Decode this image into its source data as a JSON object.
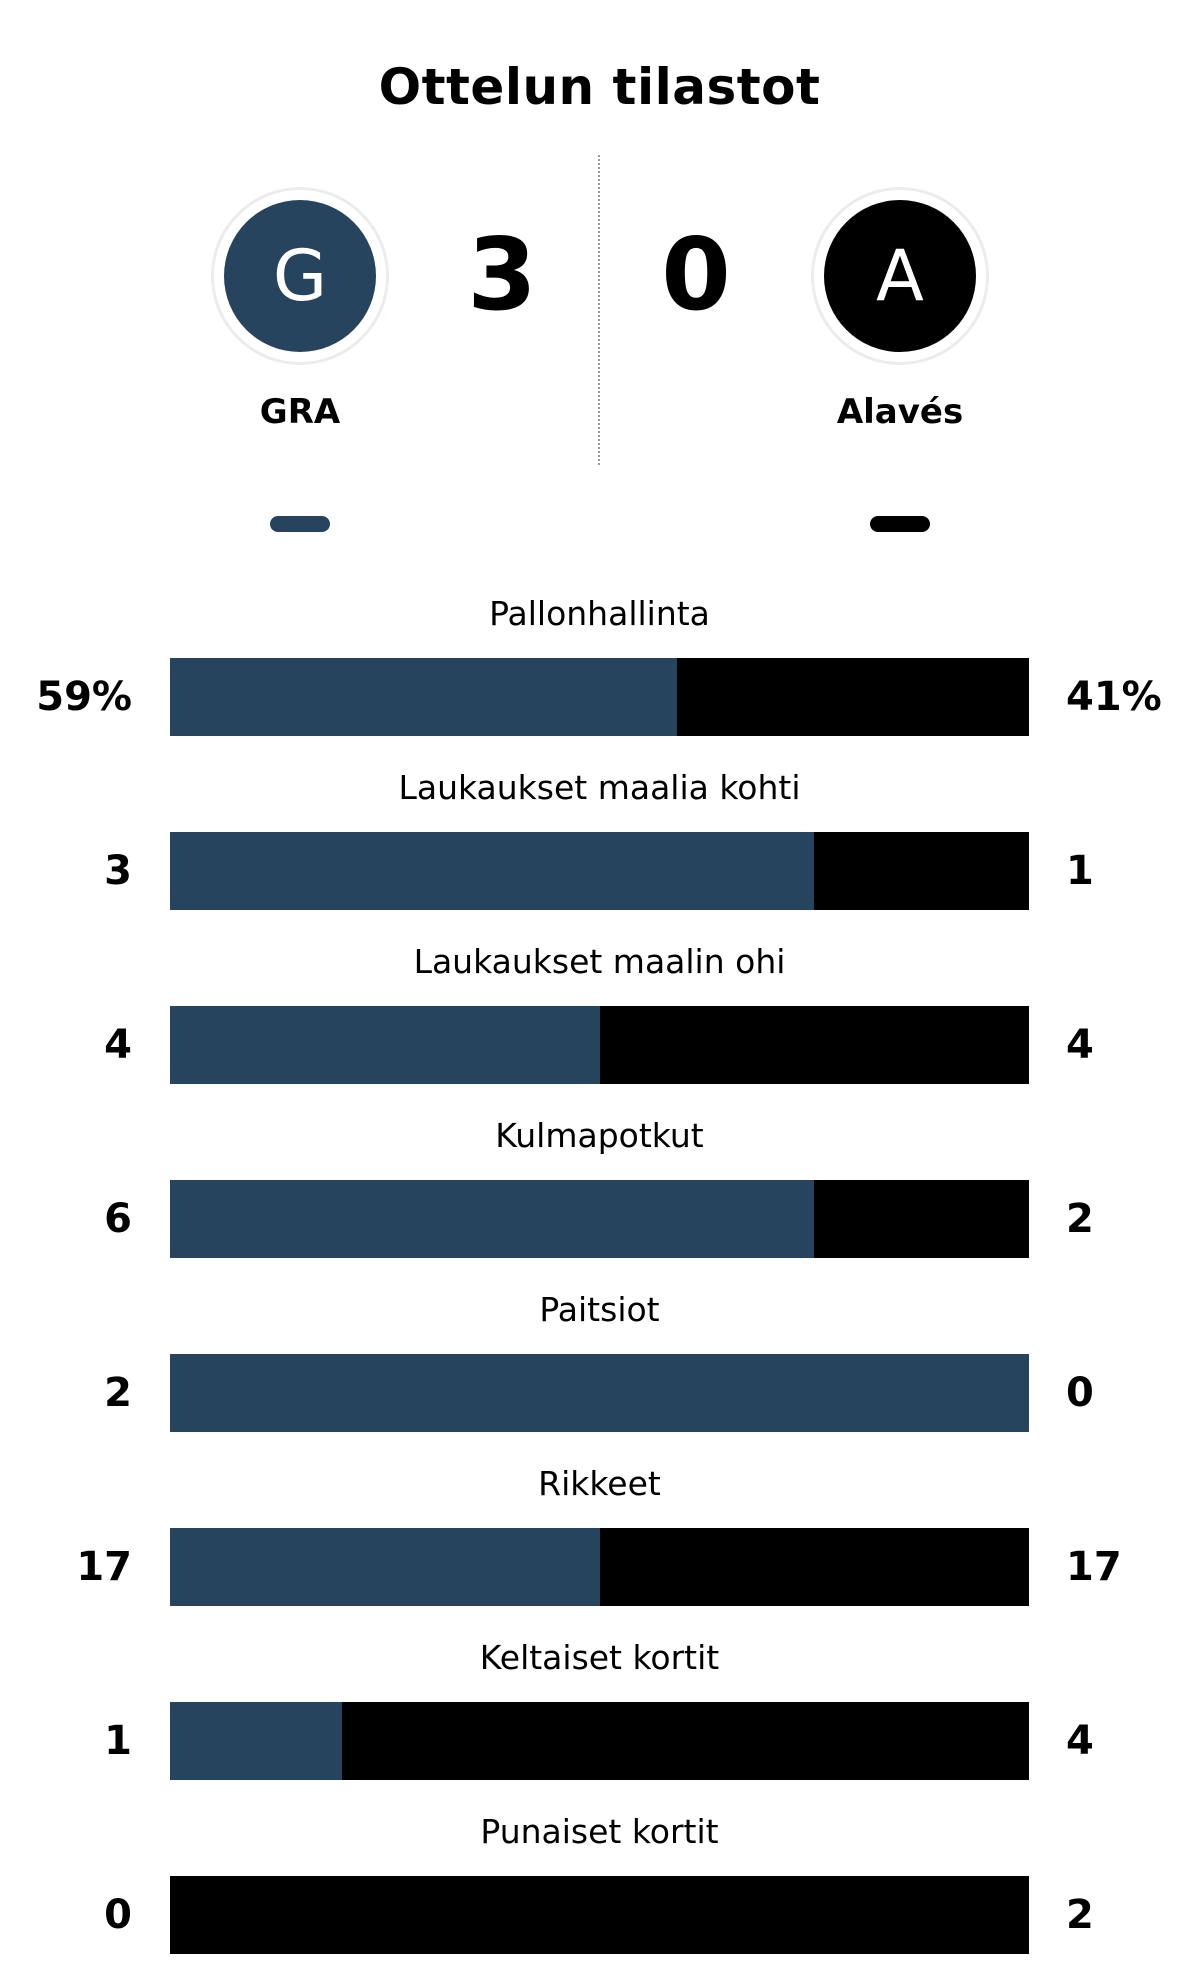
{
  "title": "Ottelun tilastot",
  "colors": {
    "home": "#27445e",
    "away": "#000000"
  },
  "home": {
    "name": "GRA",
    "logo_letter": "G",
    "score": "3"
  },
  "away": {
    "name": "Alavés",
    "logo_letter": "A",
    "score": "0"
  },
  "stats": [
    {
      "label": "Pallonhallinta",
      "home": "59%",
      "away": "41%",
      "home_share": 0.59
    },
    {
      "label": "Laukaukset maalia kohti",
      "home": "3",
      "away": "1",
      "home_share": 0.75
    },
    {
      "label": "Laukaukset maalin ohi",
      "home": "4",
      "away": "4",
      "home_share": 0.5
    },
    {
      "label": "Kulmapotkut",
      "home": "6",
      "away": "2",
      "home_share": 0.75
    },
    {
      "label": "Paitsiot",
      "home": "2",
      "away": "0",
      "home_share": 1.0
    },
    {
      "label": "Rikkeet",
      "home": "17",
      "away": "17",
      "home_share": 0.5
    },
    {
      "label": "Keltaiset kortit",
      "home": "1",
      "away": "4",
      "home_share": 0.2
    },
    {
      "label": "Punaiset kortit",
      "home": "0",
      "away": "2",
      "home_share": 0.0
    }
  ]
}
